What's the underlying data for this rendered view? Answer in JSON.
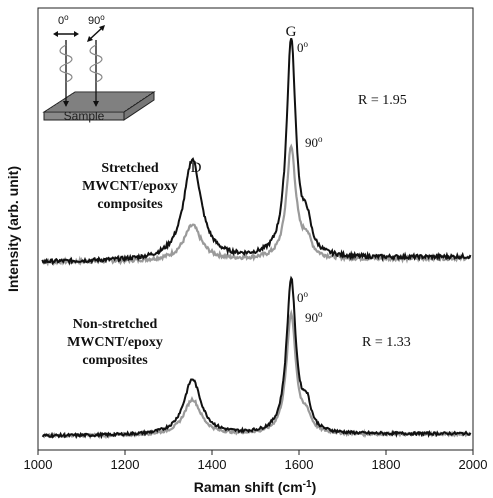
{
  "chart_data": {
    "type": "line",
    "xlabel": "Raman shift (cm-1)",
    "xlabel_main": "Raman shift (cm",
    "xlabel_sup": "-1",
    "xlabel_close": ")",
    "ylabel": "Intensity (arb. unit)",
    "xlim": [
      1000,
      2000
    ],
    "x_ticks": [
      "1000",
      "1200",
      "1400",
      "1600",
      "1800",
      "2000"
    ],
    "grid": false,
    "colors": {
      "pol_0": "#111111",
      "pol_90": "#9a9a9a"
    },
    "peaks": {
      "D": {
        "label": "D",
        "position": 1355
      },
      "G": {
        "label": "G",
        "position": 1582
      }
    },
    "inset": {
      "angle_0": "0",
      "angle_90": "90",
      "degree": "o",
      "sample_label": "Sample"
    },
    "panels": [
      {
        "name": "Stretched MWCNT/epoxy composites",
        "label_lines": [
          "Stretched",
          "MWCNT/epoxy",
          "composites"
        ],
        "ratio": "R = 1.95",
        "series": [
          {
            "name": "0",
            "color_key": "pol_0",
            "baseline": 0.08,
            "D": 0.46,
            "G": 1.0,
            "Dp": 0.16
          },
          {
            "name": "90",
            "color_key": "pol_90",
            "baseline": 0.06,
            "D": 0.16,
            "G": 0.51,
            "Dp": 0.1
          }
        ],
        "peak_labels": {
          "G": "G",
          "D": "D",
          "p0": "0",
          "p90": "90",
          "degree": "o"
        }
      },
      {
        "name": "Non-stretched MWCNT/epoxy composites",
        "label_lines": [
          "Non-stretched",
          "MWCNT/epoxy",
          "composites"
        ],
        "ratio": "R = 1.33",
        "series": [
          {
            "name": "0",
            "color_key": "pol_0",
            "baseline": 0.05,
            "D": 0.36,
            "G": 1.0,
            "Dp": 0.2
          },
          {
            "name": "90",
            "color_key": "pol_90",
            "baseline": 0.04,
            "D": 0.23,
            "G": 0.78,
            "Dp": 0.12
          }
        ],
        "peak_labels": {
          "p0": "0",
          "p90": "90",
          "degree": "o"
        }
      }
    ]
  }
}
